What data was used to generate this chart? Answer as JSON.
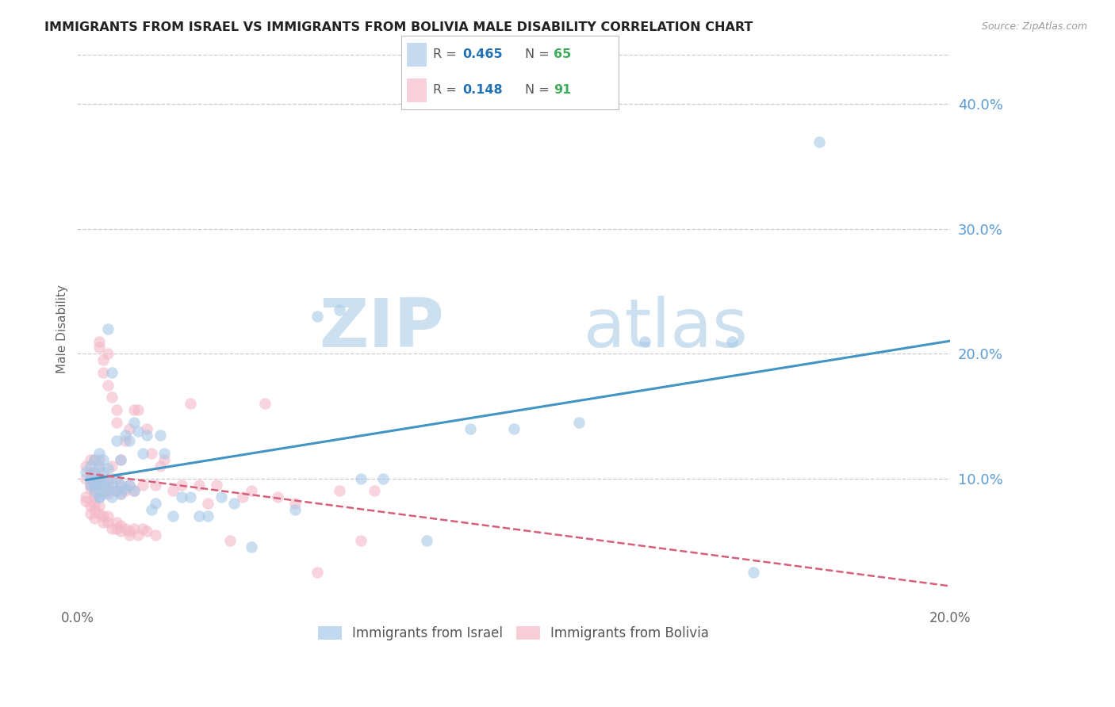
{
  "title": "IMMIGRANTS FROM ISRAEL VS IMMIGRANTS FROM BOLIVIA MALE DISABILITY CORRELATION CHART",
  "source": "Source: ZipAtlas.com",
  "ylabel": "Male Disability",
  "xlim": [
    0.0,
    0.2
  ],
  "ylim": [
    0.0,
    0.44
  ],
  "ytick_values": [
    0.1,
    0.2,
    0.3,
    0.4
  ],
  "xtick_values": [
    0.0,
    0.04,
    0.08,
    0.12,
    0.16,
    0.2
  ],
  "israel_color": "#a8c8e8",
  "bolivia_color": "#f4b8c8",
  "israel_line_color": "#4393c3",
  "bolivia_line_color": "#d6607a",
  "israel_R": "0.465",
  "israel_N": "65",
  "bolivia_R": "0.148",
  "bolivia_N": "91",
  "right_axis_color": "#5b9bd5",
  "watermark_color": "#cce0f0",
  "israel_scatter_x": [
    0.002,
    0.003,
    0.003,
    0.003,
    0.004,
    0.004,
    0.004,
    0.004,
    0.005,
    0.005,
    0.005,
    0.005,
    0.005,
    0.005,
    0.006,
    0.006,
    0.006,
    0.006,
    0.007,
    0.007,
    0.007,
    0.007,
    0.008,
    0.008,
    0.008,
    0.009,
    0.009,
    0.009,
    0.01,
    0.01,
    0.01,
    0.011,
    0.011,
    0.012,
    0.012,
    0.013,
    0.013,
    0.014,
    0.015,
    0.016,
    0.017,
    0.018,
    0.019,
    0.02,
    0.022,
    0.024,
    0.026,
    0.028,
    0.03,
    0.033,
    0.036,
    0.04,
    0.05,
    0.055,
    0.06,
    0.065,
    0.07,
    0.08,
    0.09,
    0.1,
    0.115,
    0.13,
    0.15,
    0.155,
    0.17
  ],
  "israel_scatter_y": [
    0.105,
    0.095,
    0.1,
    0.11,
    0.09,
    0.095,
    0.105,
    0.115,
    0.085,
    0.095,
    0.1,
    0.11,
    0.085,
    0.12,
    0.088,
    0.095,
    0.105,
    0.115,
    0.09,
    0.098,
    0.108,
    0.22,
    0.085,
    0.095,
    0.185,
    0.09,
    0.1,
    0.13,
    0.088,
    0.095,
    0.115,
    0.092,
    0.135,
    0.095,
    0.13,
    0.09,
    0.145,
    0.138,
    0.12,
    0.135,
    0.075,
    0.08,
    0.135,
    0.12,
    0.07,
    0.085,
    0.085,
    0.07,
    0.07,
    0.085,
    0.08,
    0.045,
    0.075,
    0.23,
    0.235,
    0.1,
    0.1,
    0.05,
    0.14,
    0.14,
    0.145,
    0.21,
    0.21,
    0.025,
    0.37
  ],
  "bolivia_scatter_x": [
    0.002,
    0.002,
    0.002,
    0.003,
    0.003,
    0.003,
    0.003,
    0.003,
    0.004,
    0.004,
    0.004,
    0.004,
    0.004,
    0.005,
    0.005,
    0.005,
    0.005,
    0.005,
    0.005,
    0.006,
    0.006,
    0.006,
    0.006,
    0.007,
    0.007,
    0.007,
    0.007,
    0.008,
    0.008,
    0.008,
    0.008,
    0.009,
    0.009,
    0.009,
    0.01,
    0.01,
    0.01,
    0.011,
    0.011,
    0.012,
    0.012,
    0.013,
    0.013,
    0.014,
    0.015,
    0.016,
    0.017,
    0.018,
    0.019,
    0.02,
    0.022,
    0.024,
    0.026,
    0.028,
    0.03,
    0.032,
    0.035,
    0.038,
    0.04,
    0.043,
    0.046,
    0.05,
    0.055,
    0.06,
    0.065,
    0.068,
    0.002,
    0.003,
    0.003,
    0.004,
    0.004,
    0.004,
    0.005,
    0.005,
    0.006,
    0.006,
    0.007,
    0.007,
    0.008,
    0.009,
    0.009,
    0.01,
    0.01,
    0.011,
    0.012,
    0.012,
    0.013,
    0.014,
    0.015,
    0.016,
    0.018
  ],
  "bolivia_scatter_y": [
    0.1,
    0.11,
    0.085,
    0.092,
    0.098,
    0.105,
    0.115,
    0.095,
    0.088,
    0.095,
    0.105,
    0.115,
    0.085,
    0.09,
    0.098,
    0.108,
    0.115,
    0.205,
    0.21,
    0.09,
    0.1,
    0.195,
    0.185,
    0.088,
    0.095,
    0.175,
    0.2,
    0.09,
    0.1,
    0.11,
    0.165,
    0.09,
    0.145,
    0.155,
    0.088,
    0.095,
    0.115,
    0.09,
    0.13,
    0.095,
    0.14,
    0.09,
    0.155,
    0.155,
    0.095,
    0.14,
    0.12,
    0.095,
    0.11,
    0.115,
    0.09,
    0.095,
    0.16,
    0.095,
    0.08,
    0.095,
    0.05,
    0.085,
    0.09,
    0.16,
    0.085,
    0.08,
    0.025,
    0.09,
    0.05,
    0.09,
    0.082,
    0.078,
    0.072,
    0.08,
    0.075,
    0.068,
    0.072,
    0.078,
    0.07,
    0.065,
    0.07,
    0.065,
    0.06,
    0.065,
    0.06,
    0.062,
    0.058,
    0.06,
    0.058,
    0.055,
    0.06,
    0.055,
    0.06,
    0.058,
    0.055
  ]
}
